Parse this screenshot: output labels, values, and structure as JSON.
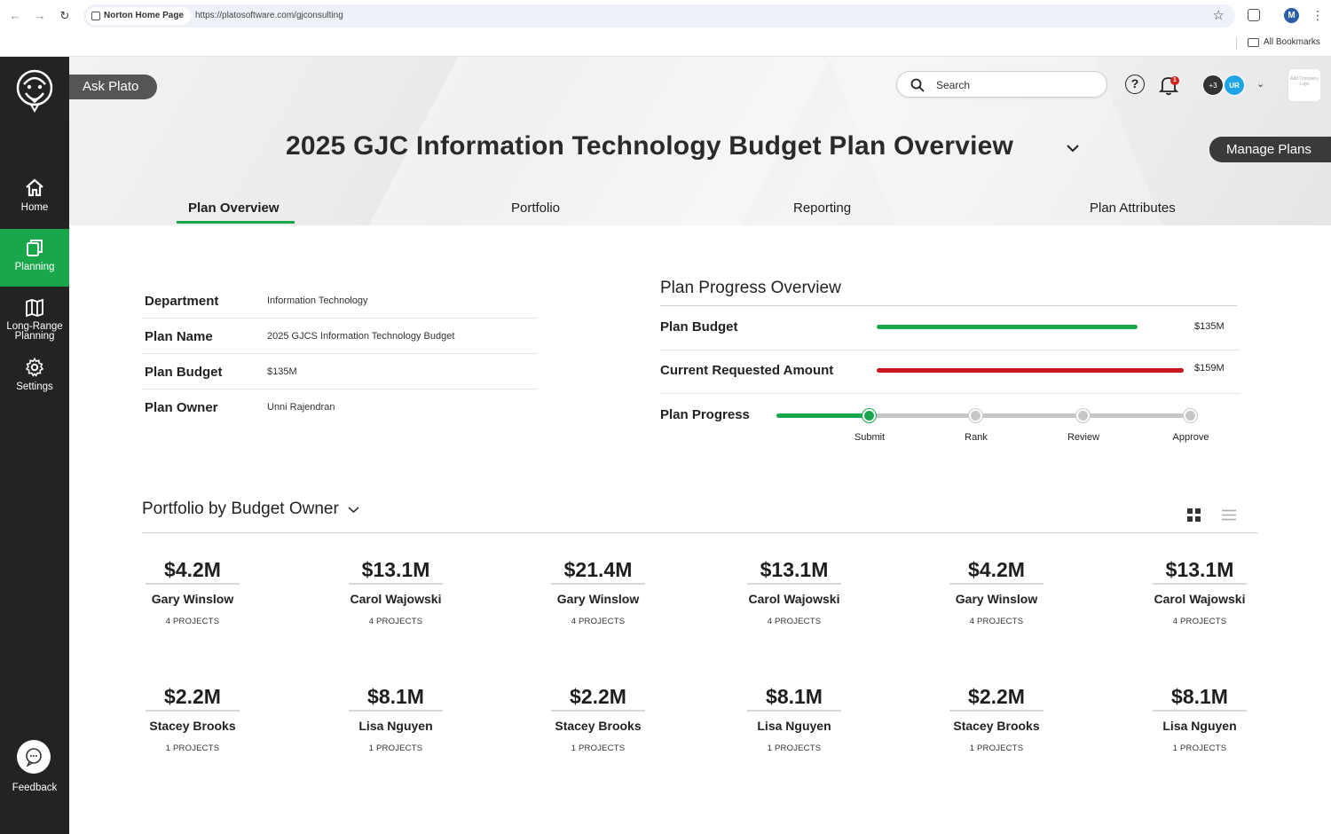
{
  "browser": {
    "tab_title": "Norton Home Page",
    "url": "https://platosoftware.com/gjconsulting",
    "profile_initial": "M",
    "bookmarks_label": "All Bookmarks"
  },
  "sidebar": {
    "items": [
      {
        "label": "Home",
        "icon": "home-icon"
      },
      {
        "label": "Planning",
        "icon": "planning-icon",
        "active": true
      },
      {
        "label": "Long-Range Planning",
        "icon": "map-icon"
      },
      {
        "label": "Settings",
        "icon": "gear-icon"
      }
    ],
    "feedback_label": "Feedback"
  },
  "header": {
    "ask_plato": "Ask Plato",
    "search_placeholder": "Search",
    "notification_count": "1",
    "avatar_more": "+3",
    "avatar_user": "UR",
    "company_logo_text": "Add Company Logo",
    "plan_title": "2025 GJC Information Technology Budget Plan Overview",
    "manage_plans": "Manage Plans",
    "tabs": [
      {
        "label": "Plan Overview",
        "active": true
      },
      {
        "label": "Portfolio"
      },
      {
        "label": "Reporting"
      },
      {
        "label": "Plan Attributes"
      }
    ]
  },
  "details": [
    {
      "label": "Department",
      "value": "Information Technology"
    },
    {
      "label": "Plan Name",
      "value": "2025 GJCS Information Technology Budget"
    },
    {
      "label": "Plan Budget",
      "value": "$135M"
    },
    {
      "label": "Plan Owner",
      "value": "Unni Rajendran"
    }
  ],
  "progress": {
    "title": "Plan Progress Overview",
    "budget_label": "Plan Budget",
    "budget_amount": "$135M",
    "budget_fraction": 0.85,
    "budget_color": "#1aa74b",
    "requested_label": "Current Requested Amount",
    "requested_amount": "$159M",
    "requested_fraction": 1.0,
    "requested_color": "#c8161d",
    "progress_label": "Plan Progress",
    "steps": [
      "Submit",
      "Rank",
      "Review",
      "Approve"
    ],
    "current_step": 0
  },
  "portfolio": {
    "title": "Portfolio by Budget Owner",
    "cards": [
      {
        "amount": "$4.2M",
        "owner": "Gary Winslow",
        "projects": "4 PROJECTS"
      },
      {
        "amount": "$13.1M",
        "owner": "Carol Wajowski",
        "projects": "4 PROJECTS"
      },
      {
        "amount": "$21.4M",
        "owner": "Gary Winslow",
        "projects": "4 PROJECTS"
      },
      {
        "amount": "$13.1M",
        "owner": "Carol Wajowski",
        "projects": "4 PROJECTS"
      },
      {
        "amount": "$4.2M",
        "owner": "Gary Winslow",
        "projects": "4 PROJECTS"
      },
      {
        "amount": "$13.1M",
        "owner": "Carol Wajowski",
        "projects": "4 PROJECTS"
      },
      {
        "amount": "$2.2M",
        "owner": "Stacey Brooks",
        "projects": "1 PROJECTS"
      },
      {
        "amount": "$8.1M",
        "owner": "Lisa Nguyen",
        "projects": "1 PROJECTS"
      },
      {
        "amount": "$2.2M",
        "owner": "Stacey Brooks",
        "projects": "1 PROJECTS"
      },
      {
        "amount": "$8.1M",
        "owner": "Lisa Nguyen",
        "projects": "1 PROJECTS"
      },
      {
        "amount": "$2.2M",
        "owner": "Stacey Brooks",
        "projects": "1 PROJECTS"
      },
      {
        "amount": "$8.1M",
        "owner": "Lisa Nguyen",
        "projects": "1 PROJECTS"
      }
    ]
  }
}
